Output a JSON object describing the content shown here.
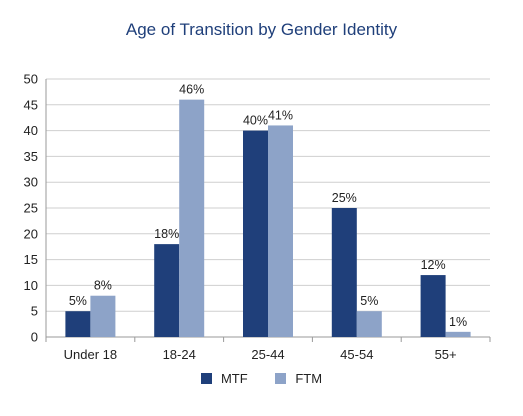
{
  "chart_data": {
    "type": "bar",
    "title": "Age of Transition by Gender Identity",
    "xlabel": "",
    "ylabel": "",
    "ylim": [
      0,
      50
    ],
    "yticks": [
      0,
      5,
      10,
      15,
      20,
      25,
      30,
      35,
      40,
      45,
      50
    ],
    "categories": [
      "Under 18",
      "18-24",
      "25-44",
      "45-54",
      "55+"
    ],
    "series": [
      {
        "name": "MTF",
        "color": "#1f3f7a",
        "values": [
          5,
          18,
          40,
          25,
          12
        ],
        "labels": [
          "5%",
          "18%",
          "40%",
          "25%",
          "12%"
        ]
      },
      {
        "name": "FTM",
        "color": "#8da3c8",
        "values": [
          8,
          46,
          41,
          5,
          1
        ],
        "labels": [
          "8%",
          "46%",
          "41%",
          "5%",
          "1%"
        ]
      }
    ],
    "grid": true,
    "legend_position": "bottom"
  }
}
